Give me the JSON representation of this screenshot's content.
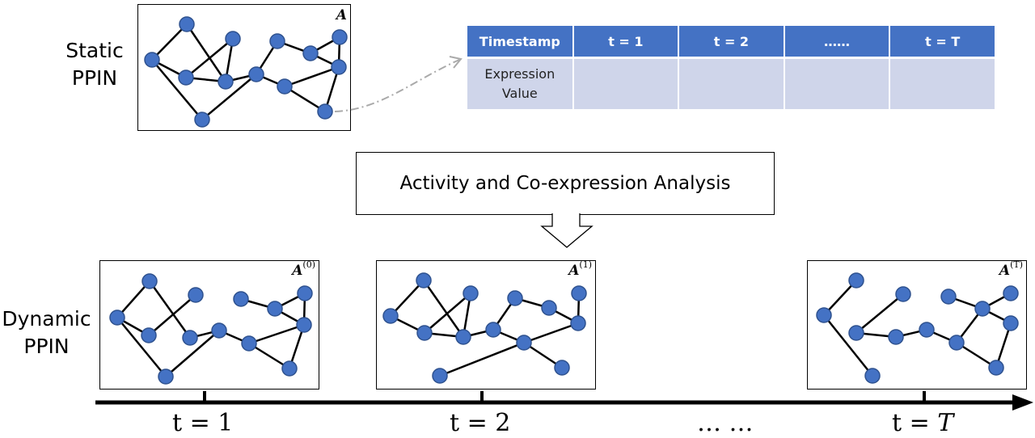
{
  "static_label": [
    "Static",
    "PPIN"
  ],
  "dynamic_label": [
    "Dynamic",
    "PPIN"
  ],
  "static_matrix": "A",
  "table": {
    "headers": [
      "Timestamp",
      "t = 1",
      "t = 2",
      "……",
      "t = T"
    ],
    "row_label": [
      "Expression",
      "Value"
    ]
  },
  "analysis_label": "Activity and Co-expression Analysis",
  "snapshots": [
    {
      "matrix": "A",
      "superscript": "(0)"
    },
    {
      "matrix": "A",
      "superscript": "(1)"
    },
    {
      "matrix": "A",
      "superscript": "(T)"
    }
  ],
  "timeline": {
    "labels": [
      {
        "prefix": "t = ",
        "value": "1",
        "italic": false
      },
      {
        "prefix": "t = ",
        "value": "2",
        "italic": false
      },
      {
        "prefix": "",
        "value": "… …",
        "italic": false
      },
      {
        "prefix": "t = ",
        "value": "T",
        "italic": true
      }
    ]
  },
  "colors": {
    "node_fill": "#4472c4",
    "node_stroke": "#2f528f",
    "header_bg": "#4472c4",
    "cell_bg": "#cfd5ea"
  }
}
